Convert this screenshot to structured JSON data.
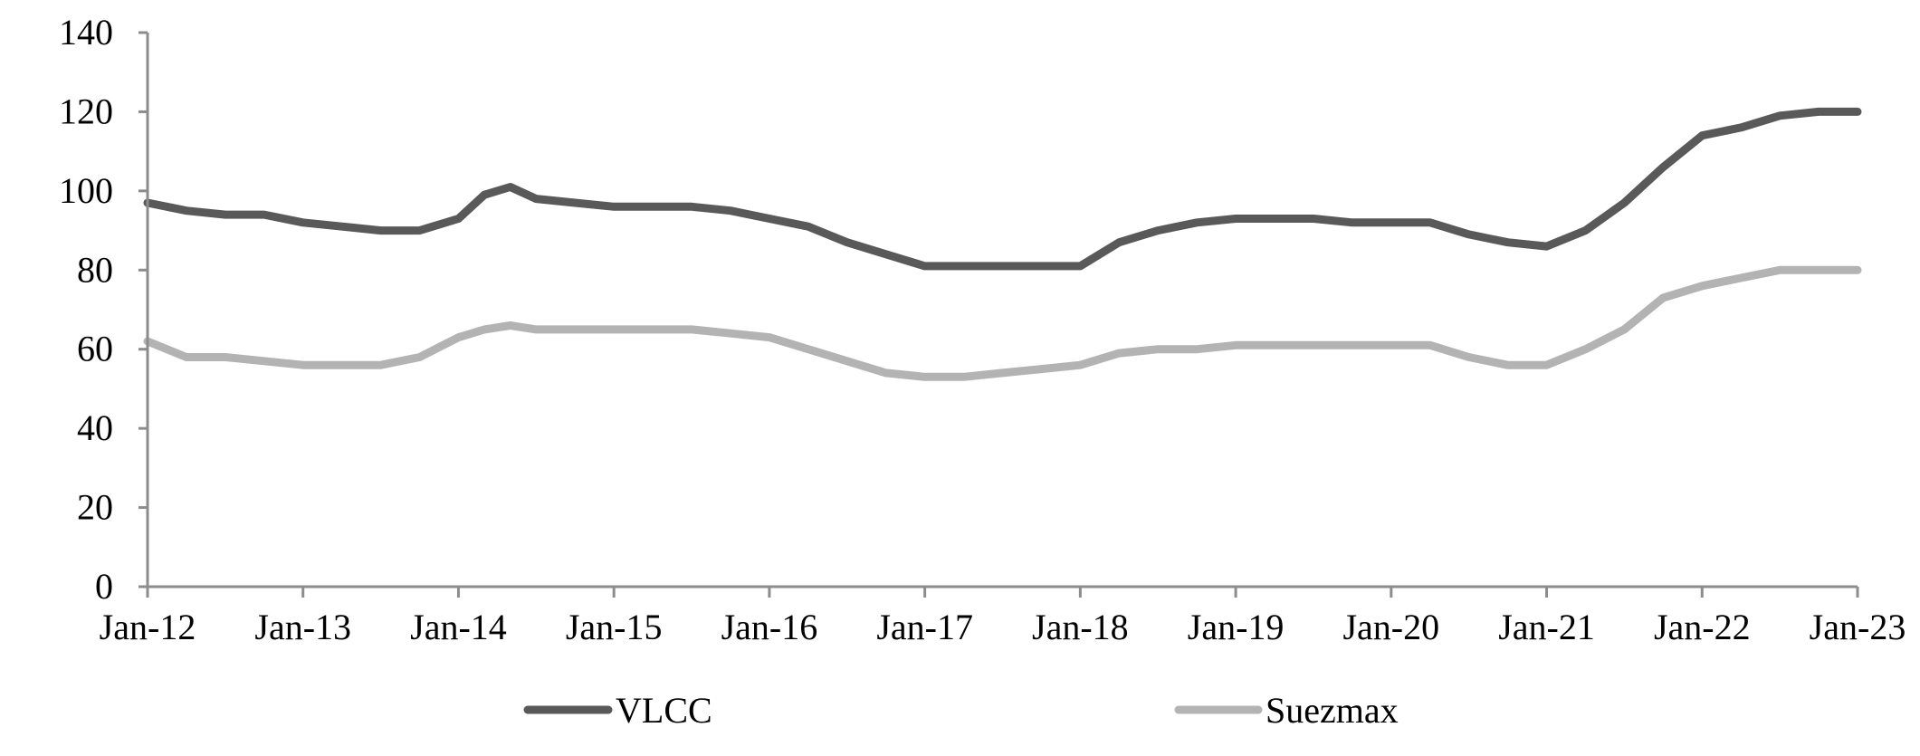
{
  "chart_data": {
    "type": "line",
    "title": "",
    "xlabel": "",
    "ylabel": "",
    "ylim": [
      0,
      140
    ],
    "yticks": [
      0,
      20,
      40,
      60,
      80,
      100,
      120,
      140
    ],
    "x_tick_labels": [
      "Jan-12",
      "Jan-13",
      "Jan-14",
      "Jan-15",
      "Jan-16",
      "Jan-17",
      "Jan-18",
      "Jan-19",
      "Jan-20",
      "Jan-21",
      "Jan-22",
      "Jan-23"
    ],
    "x_start": "Jan-12",
    "x_end": "Jan-23",
    "grid": false,
    "legend_position": "bottom",
    "series": [
      {
        "name": "VLCC",
        "color": "#595959",
        "x": [
          "Jan-12",
          "Apr-12",
          "Jul-12",
          "Oct-12",
          "Jan-13",
          "Apr-13",
          "Jul-13",
          "Oct-13",
          "Jan-14",
          "Mar-14",
          "May-14",
          "Jul-14",
          "Oct-14",
          "Jan-15",
          "Apr-15",
          "Jul-15",
          "Oct-15",
          "Jan-16",
          "Apr-16",
          "Jul-16",
          "Oct-16",
          "Jan-17",
          "Apr-17",
          "Jul-17",
          "Oct-17",
          "Jan-18",
          "Apr-18",
          "Jul-18",
          "Oct-18",
          "Jan-19",
          "Apr-19",
          "Jul-19",
          "Oct-19",
          "Jan-20",
          "Apr-20",
          "Jul-20",
          "Oct-20",
          "Jan-21",
          "Apr-21",
          "Jul-21",
          "Oct-21",
          "Jan-22",
          "Apr-22",
          "Jul-22",
          "Oct-22",
          "Jan-23"
        ],
        "values": [
          97,
          95,
          94,
          94,
          92,
          91,
          90,
          90,
          93,
          99,
          101,
          98,
          97,
          96,
          96,
          96,
          95,
          93,
          91,
          87,
          84,
          81,
          81,
          81,
          81,
          81,
          87,
          90,
          92,
          93,
          93,
          93,
          92,
          92,
          92,
          89,
          87,
          86,
          90,
          97,
          106,
          114,
          116,
          119,
          120,
          120
        ]
      },
      {
        "name": "Suezmax",
        "color": "#b3b3b3",
        "x": [
          "Jan-12",
          "Apr-12",
          "Jul-12",
          "Oct-12",
          "Jan-13",
          "Apr-13",
          "Jul-13",
          "Oct-13",
          "Jan-14",
          "Mar-14",
          "May-14",
          "Jul-14",
          "Oct-14",
          "Jan-15",
          "Apr-15",
          "Jul-15",
          "Oct-15",
          "Jan-16",
          "Apr-16",
          "Jul-16",
          "Oct-16",
          "Jan-17",
          "Apr-17",
          "Jul-17",
          "Oct-17",
          "Jan-18",
          "Apr-18",
          "Jul-18",
          "Oct-18",
          "Jan-19",
          "Apr-19",
          "Jul-19",
          "Oct-19",
          "Jan-20",
          "Apr-20",
          "Jul-20",
          "Oct-20",
          "Jan-21",
          "Apr-21",
          "Jul-21",
          "Oct-21",
          "Jan-22",
          "Apr-22",
          "Jul-22",
          "Oct-22",
          "Jan-23"
        ],
        "values": [
          62,
          58,
          58,
          57,
          56,
          56,
          56,
          58,
          63,
          65,
          66,
          65,
          65,
          65,
          65,
          65,
          64,
          63,
          60,
          57,
          54,
          53,
          53,
          54,
          55,
          56,
          59,
          60,
          60,
          61,
          61,
          61,
          61,
          61,
          61,
          58,
          56,
          56,
          60,
          65,
          73,
          76,
          78,
          80,
          80,
          80
        ]
      }
    ]
  }
}
